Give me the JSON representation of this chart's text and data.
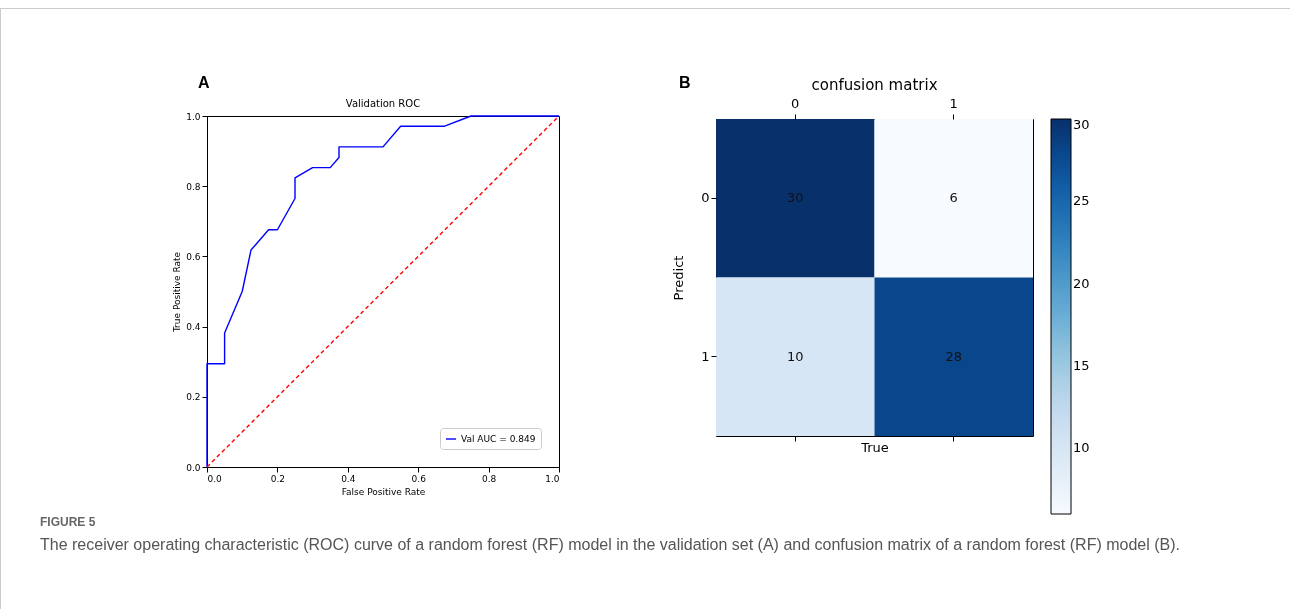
{
  "chart_data": [
    {
      "type": "line",
      "title": "Validation ROC",
      "xlabel": "False Positive Rate",
      "ylabel": "True Positive Rate",
      "annotations": [
        "A"
      ],
      "series": [
        {
          "name": "Val AUC = 0.849",
          "color": "#0000ff",
          "x": [
            0,
            0,
            0.05,
            0.05,
            0.1,
            0.125,
            0.175,
            0.2,
            0.25,
            0.25,
            0.3,
            0.35,
            0.375,
            0.375,
            0.5,
            0.55,
            0.675,
            0.75,
            1
          ],
          "values": [
            0,
            0.294,
            0.294,
            0.382,
            0.5,
            0.618,
            0.676,
            0.676,
            0.765,
            0.824,
            0.853,
            0.853,
            0.882,
            0.912,
            0.912,
            0.971,
            0.971,
            1,
            1
          ]
        },
        {
          "color": "#ff0000",
          "line_style": "dashed",
          "x": [
            0,
            1
          ],
          "values": [
            0,
            1
          ]
        }
      ],
      "xlim": [
        0,
        1
      ],
      "ylim": [
        0,
        1
      ],
      "xticks": [
        {
          "value": 0,
          "label": "0.0"
        },
        {
          "value": 0.2,
          "label": "0.2"
        },
        {
          "value": 0.4,
          "label": "0.4"
        },
        {
          "value": 0.6,
          "label": "0.6"
        },
        {
          "value": 0.8,
          "label": "0.8"
        },
        {
          "value": 1,
          "label": "1.0"
        }
      ],
      "yticks": [
        {
          "value": 0,
          "label": "0.0"
        },
        {
          "value": 0.2,
          "label": "0.2"
        },
        {
          "value": 0.4,
          "label": "0.4"
        },
        {
          "value": 0.6,
          "label": "0.6"
        },
        {
          "value": 0.8,
          "label": "0.8"
        },
        {
          "value": 1,
          "label": "1.0"
        }
      ],
      "legend": "bottom right",
      "grid": false
    },
    {
      "type": "heatmap",
      "title": "confusion matrix",
      "xlabel": "True",
      "ylabel": "Predict",
      "annotations": [
        "B",
        "FIGURE 5",
        "The receiver operating characteristic (ROC) curve of a random forest (RF) model in the validation set (A) and confusion matrix of a random forest (RF) model (B)."
      ],
      "categories": [
        "0",
        "1"
      ],
      "y_categories": [
        "0",
        "1"
      ],
      "cells": [
        [
          30,
          6
        ],
        [
          10,
          28
        ]
      ],
      "clim": [
        6,
        30
      ],
      "cticks": [
        10,
        15,
        20,
        25,
        30
      ],
      "data_labels": true
    }
  ]
}
